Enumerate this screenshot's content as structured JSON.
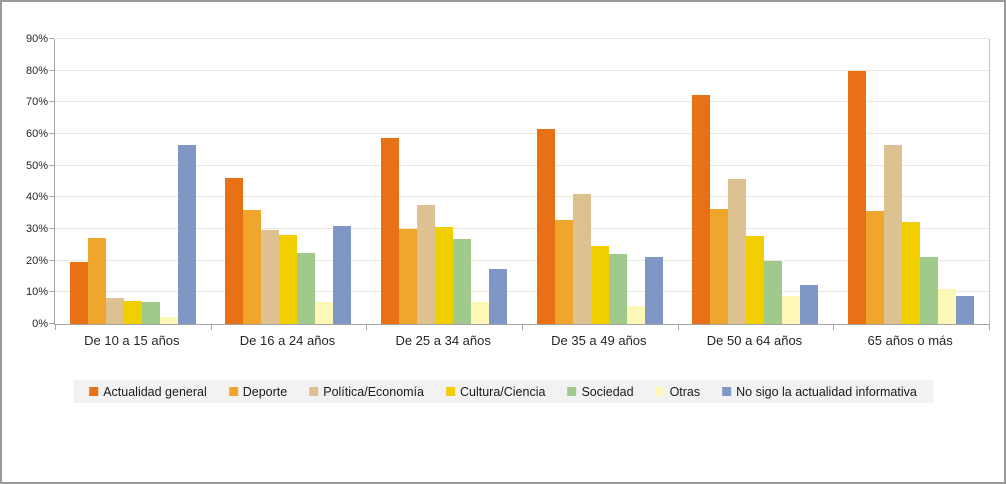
{
  "chart_data": {
    "type": "bar",
    "title": "",
    "xlabel": "",
    "ylabel": "",
    "categories": [
      "De 10 a 15 años",
      "De 16 a 24 años",
      "De 25 a 34 años",
      "De 35 a 49 años",
      "De 50 a 64 años",
      "65 años o más"
    ],
    "series": [
      {
        "name": "Actualidad general",
        "color": "#E97115",
        "values": [
          19.7,
          46.0,
          58.6,
          61.6,
          72.4,
          79.9
        ]
      },
      {
        "name": "Deporte",
        "color": "#F0A52C",
        "values": [
          27.3,
          35.9,
          29.9,
          33.0,
          36.2,
          35.8
        ]
      },
      {
        "name": "Política/Economía",
        "color": "#DEC191",
        "values": [
          8.1,
          29.6,
          37.7,
          41.2,
          45.9,
          56.4
        ]
      },
      {
        "name": "Cultura/Ciencia",
        "color": "#F0CE00",
        "values": [
          7.2,
          28.1,
          30.6,
          24.5,
          27.7,
          32.3
        ]
      },
      {
        "name": "Sociedad",
        "color": "#A0C98C",
        "values": [
          7.0,
          22.3,
          26.9,
          22.0,
          19.9,
          21.3
        ]
      },
      {
        "name": "Otras",
        "color": "#FDF8B7",
        "values": [
          2.3,
          7.0,
          6.9,
          5.7,
          8.8,
          11.2
        ]
      },
      {
        "name": "No sigo la actualidad informativa",
        "color": "#8097C5",
        "values": [
          56.6,
          30.8,
          17.3,
          21.2,
          12.4,
          8.7
        ]
      }
    ],
    "ylim": [
      0,
      90
    ],
    "yticks": [
      "0%",
      "10%",
      "20%",
      "30%",
      "40%",
      "50%",
      "60%",
      "70%",
      "80%",
      "90%"
    ],
    "grid": true,
    "legend_position": "bottom"
  },
  "style_colors": {
    "gridline": "#EBE8DA",
    "axis": "#A6A6A6",
    "legend_bg": "#F2F2F2",
    "text": "#262626",
    "canvas_border": "#999999",
    "background": "#FFFFFF"
  }
}
